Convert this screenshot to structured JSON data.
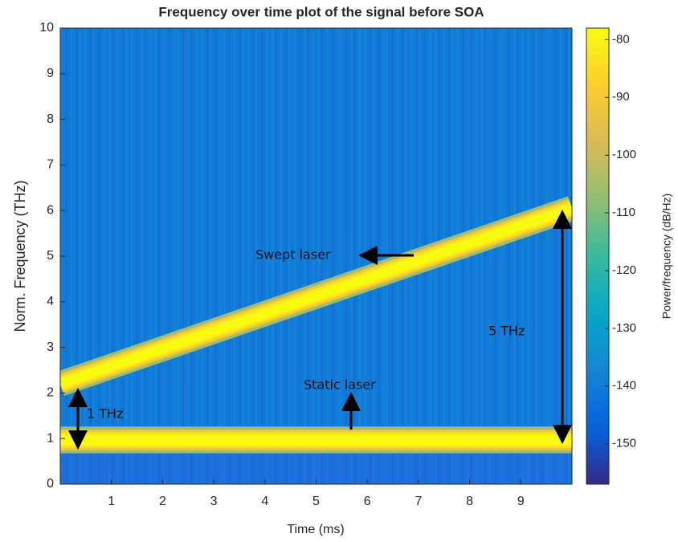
{
  "chart_data": {
    "type": "spectrogram",
    "title": "Frequency over time plot of the signal before SOA",
    "xlabel": "Time (ms)",
    "ylabel": "Norm. Frequency (THz)",
    "xlim": [
      0,
      10
    ],
    "ylim": [
      0,
      10
    ],
    "xticks": [
      1,
      2,
      3,
      4,
      5,
      6,
      7,
      8,
      9
    ],
    "yticks": [
      0,
      1,
      2,
      3,
      4,
      5,
      6,
      7,
      8,
      9,
      10
    ],
    "colormap": "parula",
    "background_power": -140,
    "series": [
      {
        "x": [
          0,
          10
        ],
        "values": [
          2.2,
          6.05
        ],
        "bandwidth": 0.45,
        "power": -78
      },
      {
        "x": [
          0,
          10
        ],
        "values": [
          0.97,
          0.97
        ],
        "bandwidth": 0.45,
        "power": -78
      }
    ],
    "annotations": [
      "Swept laser",
      "Static laser",
      "1 THz",
      "5 THz"
    ],
    "colorbar": {
      "label": "Power/frequency (dB/Hz)",
      "lim": [
        -157,
        -78
      ],
      "ticks": [
        -80,
        -90,
        -100,
        -110,
        -120,
        -130,
        -140,
        -150
      ]
    }
  }
}
